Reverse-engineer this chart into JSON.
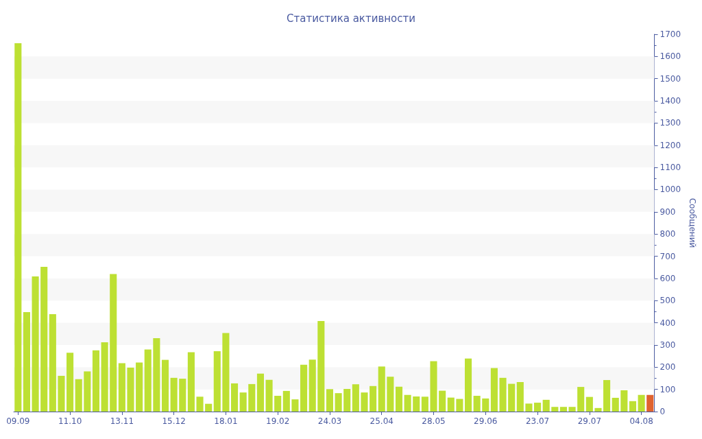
{
  "chart_data": {
    "type": "bar",
    "title": "Статистика активности",
    "ylabel": "Сообщений",
    "categories": [
      "09.09",
      null,
      null,
      null,
      null,
      null,
      "11.10",
      null,
      null,
      null,
      null,
      null,
      "13.11",
      null,
      null,
      null,
      null,
      null,
      "15.12",
      null,
      null,
      null,
      null,
      null,
      "18.01",
      null,
      null,
      null,
      null,
      null,
      "19.02",
      null,
      null,
      null,
      null,
      null,
      "24.03",
      null,
      null,
      null,
      null,
      null,
      "25.04",
      null,
      null,
      null,
      null,
      null,
      "28.05",
      null,
      null,
      null,
      null,
      null,
      "29.06",
      null,
      null,
      null,
      null,
      null,
      "23.07",
      null,
      null,
      null,
      null,
      null,
      "29.07",
      null,
      null,
      null,
      null,
      null,
      "04.08",
      null
    ],
    "values": [
      1660,
      448,
      609,
      652,
      439,
      161,
      265,
      146,
      181,
      276,
      312,
      620,
      218,
      198,
      221,
      280,
      331,
      233,
      152,
      148,
      267,
      67,
      35,
      272,
      354,
      127,
      86,
      124,
      171,
      143,
      71,
      93,
      55,
      211,
      234,
      408,
      101,
      83,
      102,
      123,
      86,
      115,
      203,
      157,
      112,
      75,
      68,
      67,
      227,
      94,
      63,
      57,
      239,
      71,
      59,
      196,
      152,
      125,
      133,
      36,
      40,
      53,
      21,
      21,
      21,
      111,
      66,
      16,
      142,
      62,
      96,
      47,
      75,
      75
    ],
    "colors": [
      "#bde033",
      "#bde033",
      "#bde033",
      "#bde033",
      "#bde033",
      "#bde033",
      "#bde033",
      "#bde033",
      "#bde033",
      "#bde033",
      "#bde033",
      "#bde033",
      "#bde033",
      "#bde033",
      "#bde033",
      "#bde033",
      "#bde033",
      "#bde033",
      "#bde033",
      "#bde033",
      "#bde033",
      "#bde033",
      "#bde033",
      "#bde033",
      "#bde033",
      "#bde033",
      "#bde033",
      "#bde033",
      "#bde033",
      "#bde033",
      "#bde033",
      "#bde033",
      "#bde033",
      "#bde033",
      "#bde033",
      "#bde033",
      "#bde033",
      "#bde033",
      "#bde033",
      "#bde033",
      "#bde033",
      "#bde033",
      "#bde033",
      "#bde033",
      "#bde033",
      "#bde033",
      "#bde033",
      "#bde033",
      "#bde033",
      "#bde033",
      "#bde033",
      "#bde033",
      "#bde033",
      "#bde033",
      "#bde033",
      "#bde033",
      "#bde033",
      "#bde033",
      "#bde033",
      "#bde033",
      "#bde033",
      "#bde033",
      "#bde033",
      "#bde033",
      "#bde033",
      "#bde033",
      "#bde033",
      "#bde033",
      "#bde033",
      "#bde033",
      "#bde033",
      "#bde033",
      "#bde033",
      "#e0632f"
    ],
    "ylim": [
      0,
      1700
    ],
    "yticks": [
      0,
      100,
      200,
      300,
      400,
      500,
      600,
      700,
      800,
      900,
      1000,
      1100,
      1200,
      1300,
      1400,
      1500,
      1600,
      1700
    ],
    "bands": [
      {
        "axis": "y",
        "from": 100,
        "to": 200,
        "color": "#f7f7f7"
      },
      {
        "axis": "y",
        "from": 300,
        "to": 400,
        "color": "#f7f7f7"
      },
      {
        "axis": "y",
        "from": 500,
        "to": 600,
        "color": "#f7f7f7"
      },
      {
        "axis": "y",
        "from": 700,
        "to": 800,
        "color": "#f7f7f7"
      },
      {
        "axis": "y",
        "from": 900,
        "to": 1000,
        "color": "#f7f7f7"
      },
      {
        "axis": "y",
        "from": 1100,
        "to": 1200,
        "color": "#f7f7f7"
      },
      {
        "axis": "y",
        "from": 1300,
        "to": 1400,
        "color": "#f7f7f7"
      },
      {
        "axis": "y",
        "from": 1500,
        "to": 1600,
        "color": "#f7f7f7"
      }
    ]
  }
}
